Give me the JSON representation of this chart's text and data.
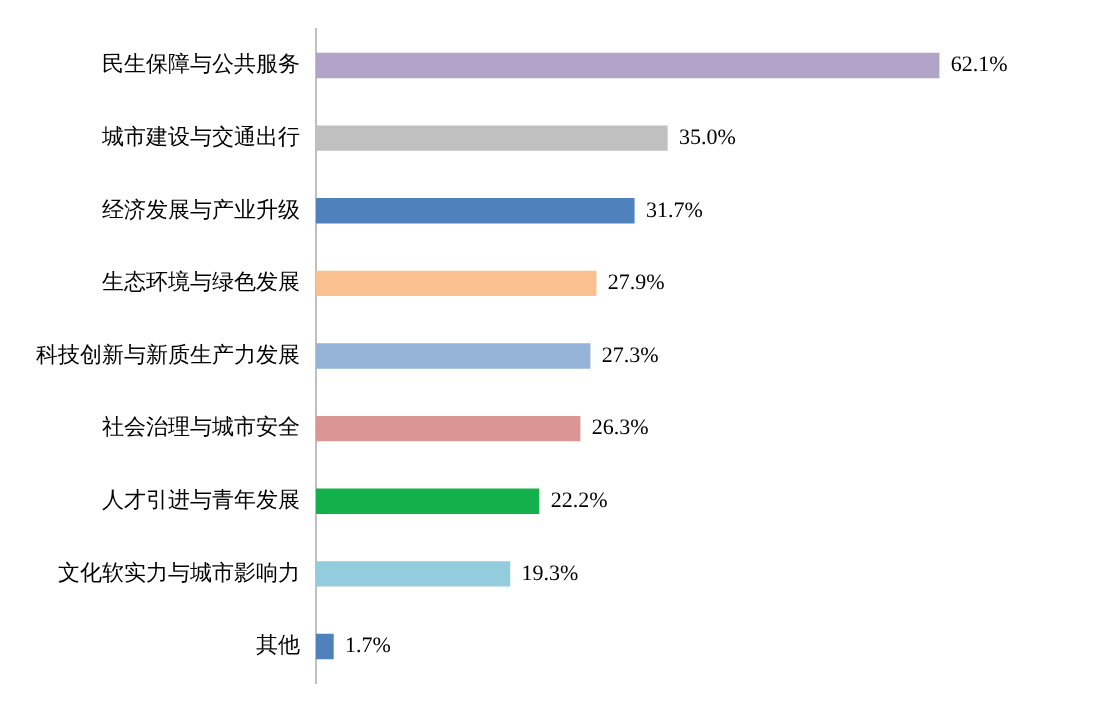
{
  "chart_data": {
    "type": "bar",
    "orientation": "horizontal",
    "tick_labels": "y",
    "legend": false,
    "categories": [
      "民生保障与公共服务",
      "城市建设与交通出行",
      "经济发展与产业升级",
      "生态环境与绿色发展",
      "科技创新与新质生产力发展",
      "社会治理与城市安全",
      "人才引进与青年发展",
      "文化软实力与城市影响力",
      "其他"
    ],
    "values": [
      62.1,
      35.0,
      31.7,
      27.9,
      27.3,
      26.3,
      22.2,
      19.3,
      1.7
    ],
    "colors": [
      "#b2a3c9",
      "#c0c0c0",
      "#4f81bd",
      "#fac08f",
      "#95b3d7",
      "#da9694",
      "#13b14b",
      "#93cddd",
      "#4f81bd"
    ],
    "value_labels": [
      "62.1%",
      "35.0%",
      "31.7%",
      "27.9%",
      "27.3%",
      "26.3%",
      "22.2%",
      "19.3%",
      "1.7%"
    ]
  }
}
